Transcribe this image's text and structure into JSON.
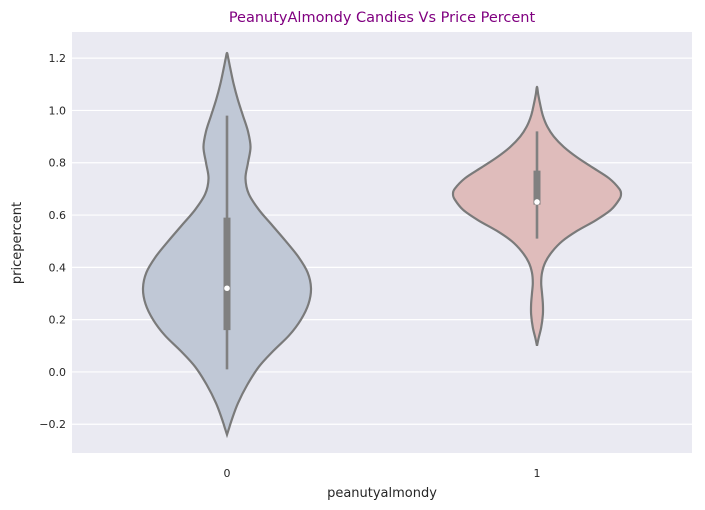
{
  "chart_data": {
    "type": "violin",
    "title": "PeanutyAlmondy Candies Vs Price Percent",
    "xlabel": "peanutyalmondy",
    "ylabel": "pricepercent",
    "ylim": [
      -0.31,
      1.3
    ],
    "yticks": [
      -0.2,
      0.0,
      0.2,
      0.4,
      0.6,
      0.8,
      1.0,
      1.2
    ],
    "ytick_labels": [
      "−0.2",
      "0.0",
      "0.2",
      "0.4",
      "0.6",
      "0.8",
      "1.0",
      "1.2"
    ],
    "categories": [
      "0",
      "1"
    ],
    "grid": true,
    "colors": {
      "background": "#eaeaf2",
      "title": "#800080",
      "violin_0": "#c0c8d6",
      "violin_1": "#dfbcbb",
      "outline": "#7a7a7a",
      "box": "#808080"
    },
    "violins": [
      {
        "category": "0",
        "min": 0.01,
        "q1": 0.16,
        "median": 0.32,
        "q3": 0.59,
        "max": 0.98,
        "kde_range": [
          -0.24,
          1.22
        ],
        "profile": [
          [
            -0.24,
            0.0
          ],
          [
            -0.22,
            0.02
          ],
          [
            -0.18,
            0.06
          ],
          [
            -0.12,
            0.13
          ],
          [
            -0.05,
            0.24
          ],
          [
            0.02,
            0.38
          ],
          [
            0.08,
            0.55
          ],
          [
            0.14,
            0.74
          ],
          [
            0.2,
            0.88
          ],
          [
            0.26,
            0.97
          ],
          [
            0.32,
            1.0
          ],
          [
            0.38,
            0.96
          ],
          [
            0.44,
            0.85
          ],
          [
            0.5,
            0.7
          ],
          [
            0.56,
            0.54
          ],
          [
            0.62,
            0.38
          ],
          [
            0.68,
            0.26
          ],
          [
            0.74,
            0.22
          ],
          [
            0.8,
            0.25
          ],
          [
            0.86,
            0.28
          ],
          [
            0.92,
            0.25
          ],
          [
            0.98,
            0.19
          ],
          [
            1.04,
            0.13
          ],
          [
            1.1,
            0.08
          ],
          [
            1.16,
            0.04
          ],
          [
            1.2,
            0.015
          ],
          [
            1.22,
            0.0
          ]
        ]
      },
      {
        "category": "1",
        "min": 0.51,
        "q1": 0.64,
        "median": 0.65,
        "q3": 0.77,
        "max": 0.92,
        "kde_range": [
          0.1,
          1.09
        ],
        "profile": [
          [
            0.1,
            0.0
          ],
          [
            0.13,
            0.02
          ],
          [
            0.17,
            0.05
          ],
          [
            0.22,
            0.07
          ],
          [
            0.26,
            0.07
          ],
          [
            0.3,
            0.06
          ],
          [
            0.34,
            0.05
          ],
          [
            0.38,
            0.06
          ],
          [
            0.42,
            0.1
          ],
          [
            0.46,
            0.18
          ],
          [
            0.5,
            0.3
          ],
          [
            0.54,
            0.48
          ],
          [
            0.58,
            0.7
          ],
          [
            0.62,
            0.88
          ],
          [
            0.66,
            0.98
          ],
          [
            0.68,
            1.0
          ],
          [
            0.7,
            0.98
          ],
          [
            0.74,
            0.86
          ],
          [
            0.78,
            0.67
          ],
          [
            0.82,
            0.48
          ],
          [
            0.86,
            0.32
          ],
          [
            0.9,
            0.2
          ],
          [
            0.94,
            0.12
          ],
          [
            0.98,
            0.07
          ],
          [
            1.02,
            0.04
          ],
          [
            1.06,
            0.015
          ],
          [
            1.09,
            0.0
          ]
        ]
      }
    ]
  }
}
